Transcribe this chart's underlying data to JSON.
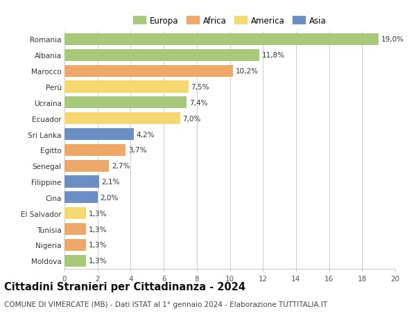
{
  "countries": [
    "Romania",
    "Albania",
    "Marocco",
    "Perù",
    "Ucraina",
    "Ecuador",
    "Sri Lanka",
    "Egitto",
    "Senegal",
    "Filippine",
    "Cina",
    "El Salvador",
    "Tunisia",
    "Nigeria",
    "Moldova"
  ],
  "values": [
    19.0,
    11.8,
    10.2,
    7.5,
    7.4,
    7.0,
    4.2,
    3.7,
    2.7,
    2.1,
    2.0,
    1.3,
    1.3,
    1.3,
    1.3
  ],
  "labels": [
    "19,0%",
    "11,8%",
    "10,2%",
    "7,5%",
    "7,4%",
    "7,0%",
    "4,2%",
    "3,7%",
    "2,7%",
    "2,1%",
    "2,0%",
    "1,3%",
    "1,3%",
    "1,3%",
    "1,3%"
  ],
  "categories": [
    "Europa",
    "Europa",
    "Africa",
    "America",
    "Europa",
    "America",
    "Asia",
    "Africa",
    "Africa",
    "Asia",
    "Asia",
    "America",
    "Africa",
    "Africa",
    "Europa"
  ],
  "colors": {
    "Europa": "#a8c87a",
    "Africa": "#f0a868",
    "America": "#f5d870",
    "Asia": "#6b8fc4"
  },
  "legend_order": [
    "Europa",
    "Africa",
    "America",
    "Asia"
  ],
  "title": "Cittadini Stranieri per Cittadinanza - 2024",
  "subtitle": "COMUNE DI VIMERCATE (MB) - Dati ISTAT al 1° gennaio 2024 - Elaborazione TUTTITALIA.IT",
  "xlim": [
    0,
    20
  ],
  "xticks": [
    0,
    2,
    4,
    6,
    8,
    10,
    12,
    14,
    16,
    18,
    20
  ],
  "background_color": "#ffffff",
  "grid_color": "#cccccc",
  "bar_height": 0.75,
  "title_fontsize": 10.5,
  "subtitle_fontsize": 7.5,
  "label_fontsize": 7.5,
  "tick_fontsize": 7.5,
  "legend_fontsize": 8.5
}
